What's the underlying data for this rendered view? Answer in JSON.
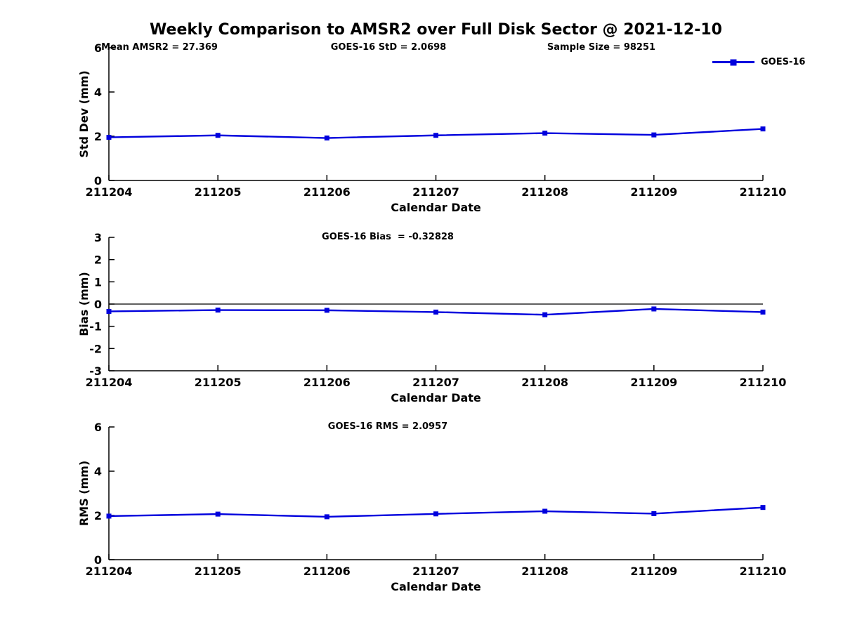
{
  "page_title": "Weekly Comparison to AMSR2 over Full Disk Sector @ 2021-12-10",
  "legend": {
    "label": "GOES-16",
    "position": "top-right"
  },
  "colors": {
    "line": "#0000dd",
    "marker": "#0000dd",
    "axis": "#000000",
    "text": "#000000",
    "background": "#ffffff"
  },
  "chart_data": [
    {
      "type": "line",
      "name": "std-dev",
      "series_name": "GOES-16",
      "annotations": [
        "Mean AMSR2 = 27.369",
        "GOES-16 StD = 2.0698",
        "Sample Size = 98251"
      ],
      "categories": [
        "211204",
        "211205",
        "211206",
        "211207",
        "211208",
        "211209",
        "211210"
      ],
      "values": [
        1.95,
        2.04,
        1.92,
        2.04,
        2.14,
        2.06,
        2.33
      ],
      "xlabel": "Calendar Date",
      "ylabel": "Std Dev (mm)",
      "ylim": [
        0,
        6
      ],
      "yticks": [
        0,
        2,
        4,
        6
      ],
      "grid": false,
      "zero_line": false
    },
    {
      "type": "line",
      "name": "bias",
      "series_name": "GOES-16",
      "title": "GOES-16 Bias  = -0.32828",
      "categories": [
        "211204",
        "211205",
        "211206",
        "211207",
        "211208",
        "211209",
        "211210"
      ],
      "values": [
        -0.33,
        -0.27,
        -0.28,
        -0.36,
        -0.48,
        -0.22,
        -0.36
      ],
      "xlabel": "Calendar Date",
      "ylabel": "Bias (mm)",
      "ylim": [
        -3,
        3
      ],
      "yticks": [
        -3,
        -2,
        -1,
        0,
        1,
        2,
        3
      ],
      "grid": false,
      "zero_line": true
    },
    {
      "type": "line",
      "name": "rms",
      "series_name": "GOES-16",
      "title": "GOES-16 RMS = 2.0957",
      "categories": [
        "211204",
        "211205",
        "211206",
        "211207",
        "211208",
        "211209",
        "211210"
      ],
      "values": [
        1.97,
        2.06,
        1.94,
        2.07,
        2.19,
        2.08,
        2.36
      ],
      "xlabel": "Calendar Date",
      "ylabel": "RMS (mm)",
      "ylim": [
        0,
        6
      ],
      "yticks": [
        0,
        2,
        4,
        6
      ],
      "grid": false,
      "zero_line": false
    }
  ]
}
